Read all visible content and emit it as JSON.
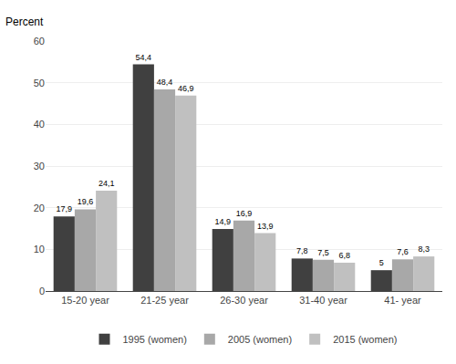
{
  "chart_data": {
    "type": "bar",
    "ylabel": "Percent",
    "categories": [
      "15-20 year",
      "21-25 year",
      "26-30 year",
      "31-40 year",
      "41- year"
    ],
    "series": [
      {
        "name": "1995 (women)",
        "color": "#404040",
        "values": [
          17.9,
          54.4,
          14.9,
          7.8,
          5.0
        ],
        "value_labels": [
          "17,9",
          "54,4",
          "14,9",
          "7,8",
          "5"
        ]
      },
      {
        "name": "2005 (women)",
        "color": "#a8a8a8",
        "values": [
          19.6,
          48.4,
          16.9,
          7.5,
          7.6
        ],
        "value_labels": [
          "19,6",
          "48,4",
          "16,9",
          "7,5",
          "7,6"
        ]
      },
      {
        "name": "2015 (women)",
        "color": "#c0c0c0",
        "values": [
          24.1,
          46.9,
          13.9,
          6.8,
          8.3
        ],
        "value_labels": [
          "24,1",
          "46,9",
          "13,9",
          "6,8",
          "8,3"
        ]
      }
    ],
    "ylim": [
      0,
      60
    ],
    "yticks": [
      0,
      10,
      20,
      30,
      40,
      50,
      60
    ],
    "grid": true,
    "data_labels": true,
    "legend": "bottom"
  }
}
